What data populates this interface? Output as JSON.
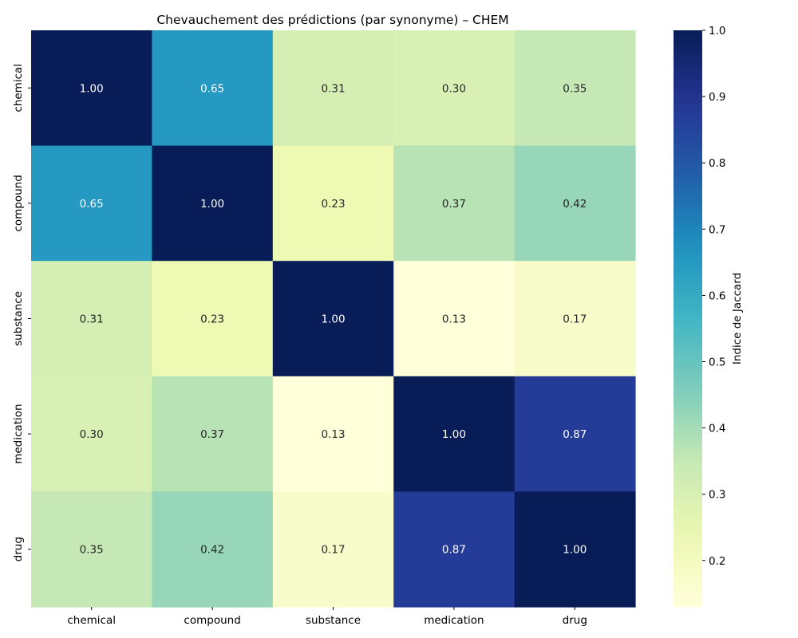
{
  "chart_data": {
    "type": "heatmap",
    "title": "Chevauchement des prédictions (par synonyme) – CHEM",
    "x_categories": [
      "chemical",
      "compound",
      "substance",
      "medication",
      "drug"
    ],
    "y_categories": [
      "chemical",
      "compound",
      "substance",
      "medication",
      "drug"
    ],
    "values": [
      [
        1.0,
        0.65,
        0.31,
        0.3,
        0.35
      ],
      [
        0.65,
        1.0,
        0.23,
        0.37,
        0.42
      ],
      [
        0.31,
        0.23,
        1.0,
        0.13,
        0.17
      ],
      [
        0.3,
        0.37,
        0.13,
        1.0,
        0.87
      ],
      [
        0.35,
        0.42,
        0.17,
        0.87,
        1.0
      ]
    ],
    "value_format": "2 decimals",
    "colormap": "YlGnBu",
    "colorbar": {
      "label": "Indice de Jaccard",
      "range": [
        0.13,
        1.0
      ],
      "ticks": [
        "0.2",
        "0.3",
        "0.4",
        "0.5",
        "0.6",
        "0.7",
        "0.8",
        "0.9",
        "1.0"
      ]
    },
    "xlabel": "",
    "ylabel": ""
  }
}
